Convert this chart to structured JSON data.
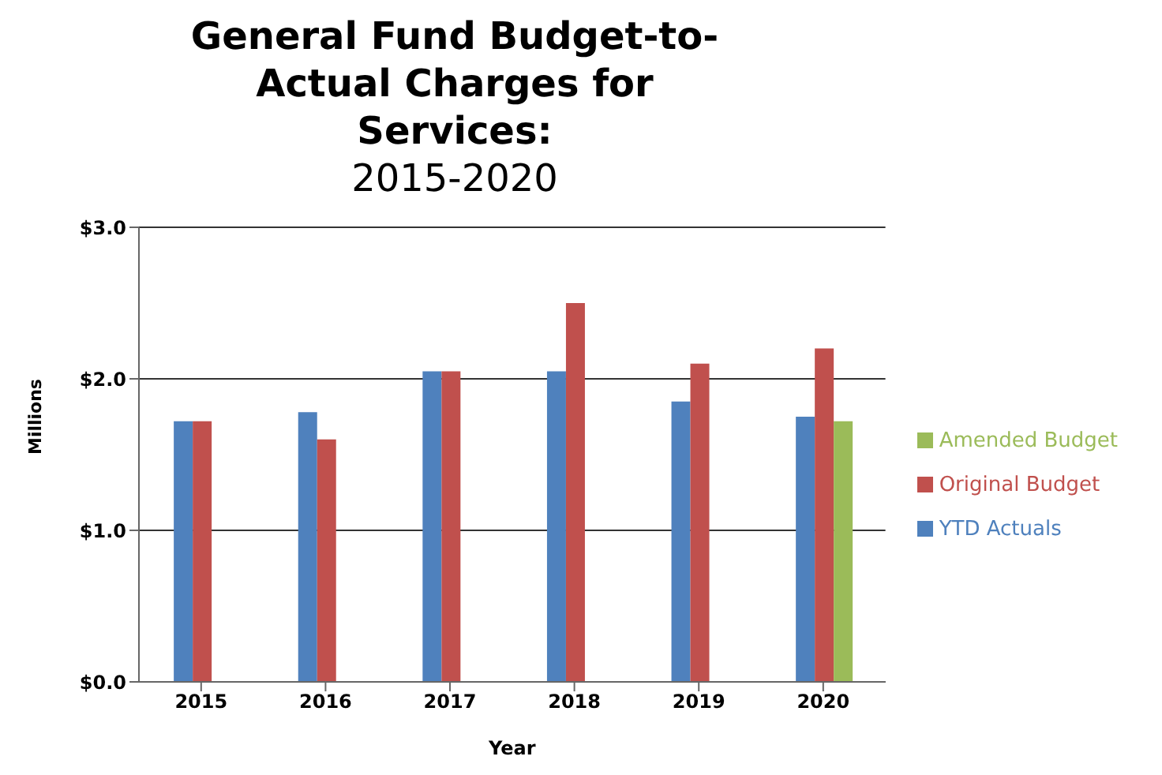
{
  "chart_data": {
    "type": "bar",
    "title": "General Fund Budget-to-Actual Charges for Services:",
    "subtitle": "2015-2020",
    "xlabel": "Year",
    "ylabel": "Millions",
    "categories": [
      "2015",
      "2016",
      "2017",
      "2018",
      "2019",
      "2020"
    ],
    "series": [
      {
        "name": "YTD Actuals",
        "color": "#4f81bd",
        "values": [
          1.72,
          1.78,
          2.05,
          2.05,
          1.85,
          1.75
        ]
      },
      {
        "name": "Original Budget",
        "color": "#c0504d",
        "values": [
          1.72,
          1.6,
          2.05,
          2.5,
          2.1,
          2.2
        ]
      },
      {
        "name": "Amended Budget",
        "color": "#9bbb59",
        "values": [
          null,
          null,
          null,
          null,
          null,
          1.72
        ]
      }
    ],
    "ylim": [
      0,
      3
    ],
    "yticks": [
      {
        "value": 0,
        "label": "$0.0"
      },
      {
        "value": 1,
        "label": "$1.0"
      },
      {
        "value": 2,
        "label": "$2.0"
      },
      {
        "value": 3,
        "label": "$3.0"
      }
    ],
    "grid": "y",
    "legend": "right"
  }
}
